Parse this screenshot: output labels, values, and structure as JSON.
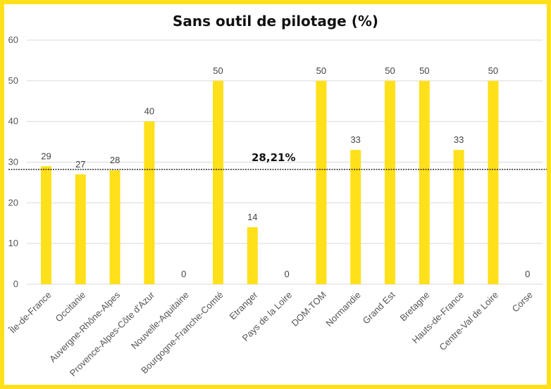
{
  "chart_data": {
    "type": "bar",
    "title": "Sans outil de pilotage (%)",
    "xlabel": "",
    "ylabel": "",
    "ylim": [
      0,
      60
    ],
    "yticks": [
      0,
      10,
      20,
      30,
      40,
      50,
      60
    ],
    "categories": [
      "Île-de-France",
      "Occitanie",
      "Auvergne-Rhône-Alpes",
      "Provence-Alpes-Côte d'Azur",
      "Nouvelle-Aquitaine",
      "Bourgogne-Franche-Comté",
      "Etranger",
      "Pays de la Loire",
      "DOM-TOM",
      "Normandie",
      "Grand Est",
      "Bretagne",
      "Hauts-de-France",
      "Centre-Val de Loire",
      "Corse"
    ],
    "values": [
      29,
      27,
      28,
      40,
      0,
      50,
      14,
      0,
      50,
      33,
      50,
      50,
      33,
      50,
      0
    ],
    "reference_line": {
      "value": 28.21,
      "label": "28,21%",
      "style": "dashed"
    },
    "grid": true,
    "bar_color": "#FFE01A",
    "legend": "none"
  }
}
